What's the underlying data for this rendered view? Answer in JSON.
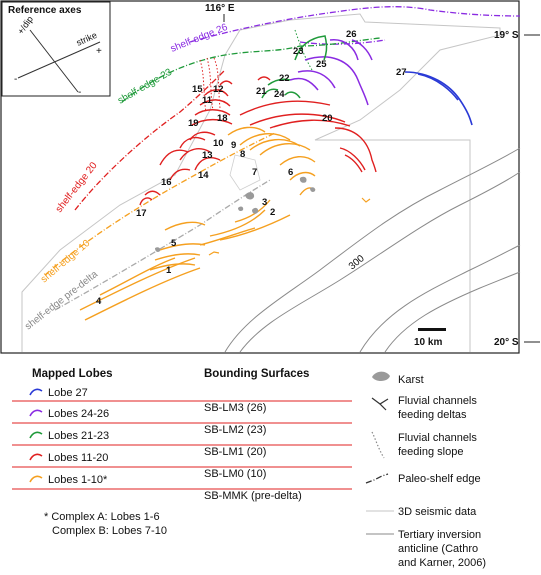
{
  "reference_axes": {
    "title": "Reference axes",
    "dip_label": "+/dip",
    "strike_label": "strike",
    "plus": "+",
    "minus": "-"
  },
  "coordinates": {
    "lon_top": "116° E",
    "lat_top": "19° S",
    "lat_bottom": "20° S"
  },
  "shelf_edges": {
    "e26": "shelf-edge 26",
    "e23": "shelf-edge 23",
    "e20": "shelf-edge 20",
    "e10": "shelf-edge 10",
    "pre": "shelf-edge pre-delta"
  },
  "lobe_numbers": [
    "1",
    "2",
    "3",
    "4",
    "5",
    "6",
    "7",
    "8",
    "9",
    "10",
    "11",
    "12",
    "13",
    "14",
    "15",
    "16",
    "17",
    "18",
    "19",
    "20",
    "21",
    "22",
    "23",
    "24",
    "25",
    "26",
    "27"
  ],
  "contour_label": "300",
  "scale_bar": "10 km",
  "legend": {
    "mapped_lobes_title": "Mapped Lobes",
    "bounding_title": "Bounding Surfaces",
    "lobes": [
      {
        "label": "Lobe 27",
        "color": "#2a3ad6"
      },
      {
        "label": "Lobes 24-26",
        "color": "#8a2be2"
      },
      {
        "label": "Lobes 21-23",
        "color": "#1f9a3a"
      },
      {
        "label": "Lobes 11-20",
        "color": "#e02020"
      },
      {
        "label": "Lobes 1-10*",
        "color": "#f5a020"
      }
    ],
    "surfaces": [
      "SB-LM3 (26)",
      "SB-LM2 (23)",
      "SB-LM1 (20)",
      "SB-LM0 (10)",
      "SB-MMK (pre-delta)"
    ],
    "footnote_line1": "* Complex A: Lobes 1-6",
    "footnote_line2": "Complex B: Lobes 7-10",
    "symbols": {
      "karst": "Karst",
      "fluvial_deltas_1": "Fluvial channels",
      "fluvial_deltas_2": "feeding deltas",
      "fluvial_slope_1": "Fluvial channels",
      "fluvial_slope_2": "feeding slope",
      "paleo_shelf": "Paleo-shelf edge",
      "seismic": "3D seismic data",
      "tertiary_1": "Tertiary inversion",
      "tertiary_2": "anticline (Cathro",
      "tertiary_3": "and Karner, 2006)"
    }
  }
}
